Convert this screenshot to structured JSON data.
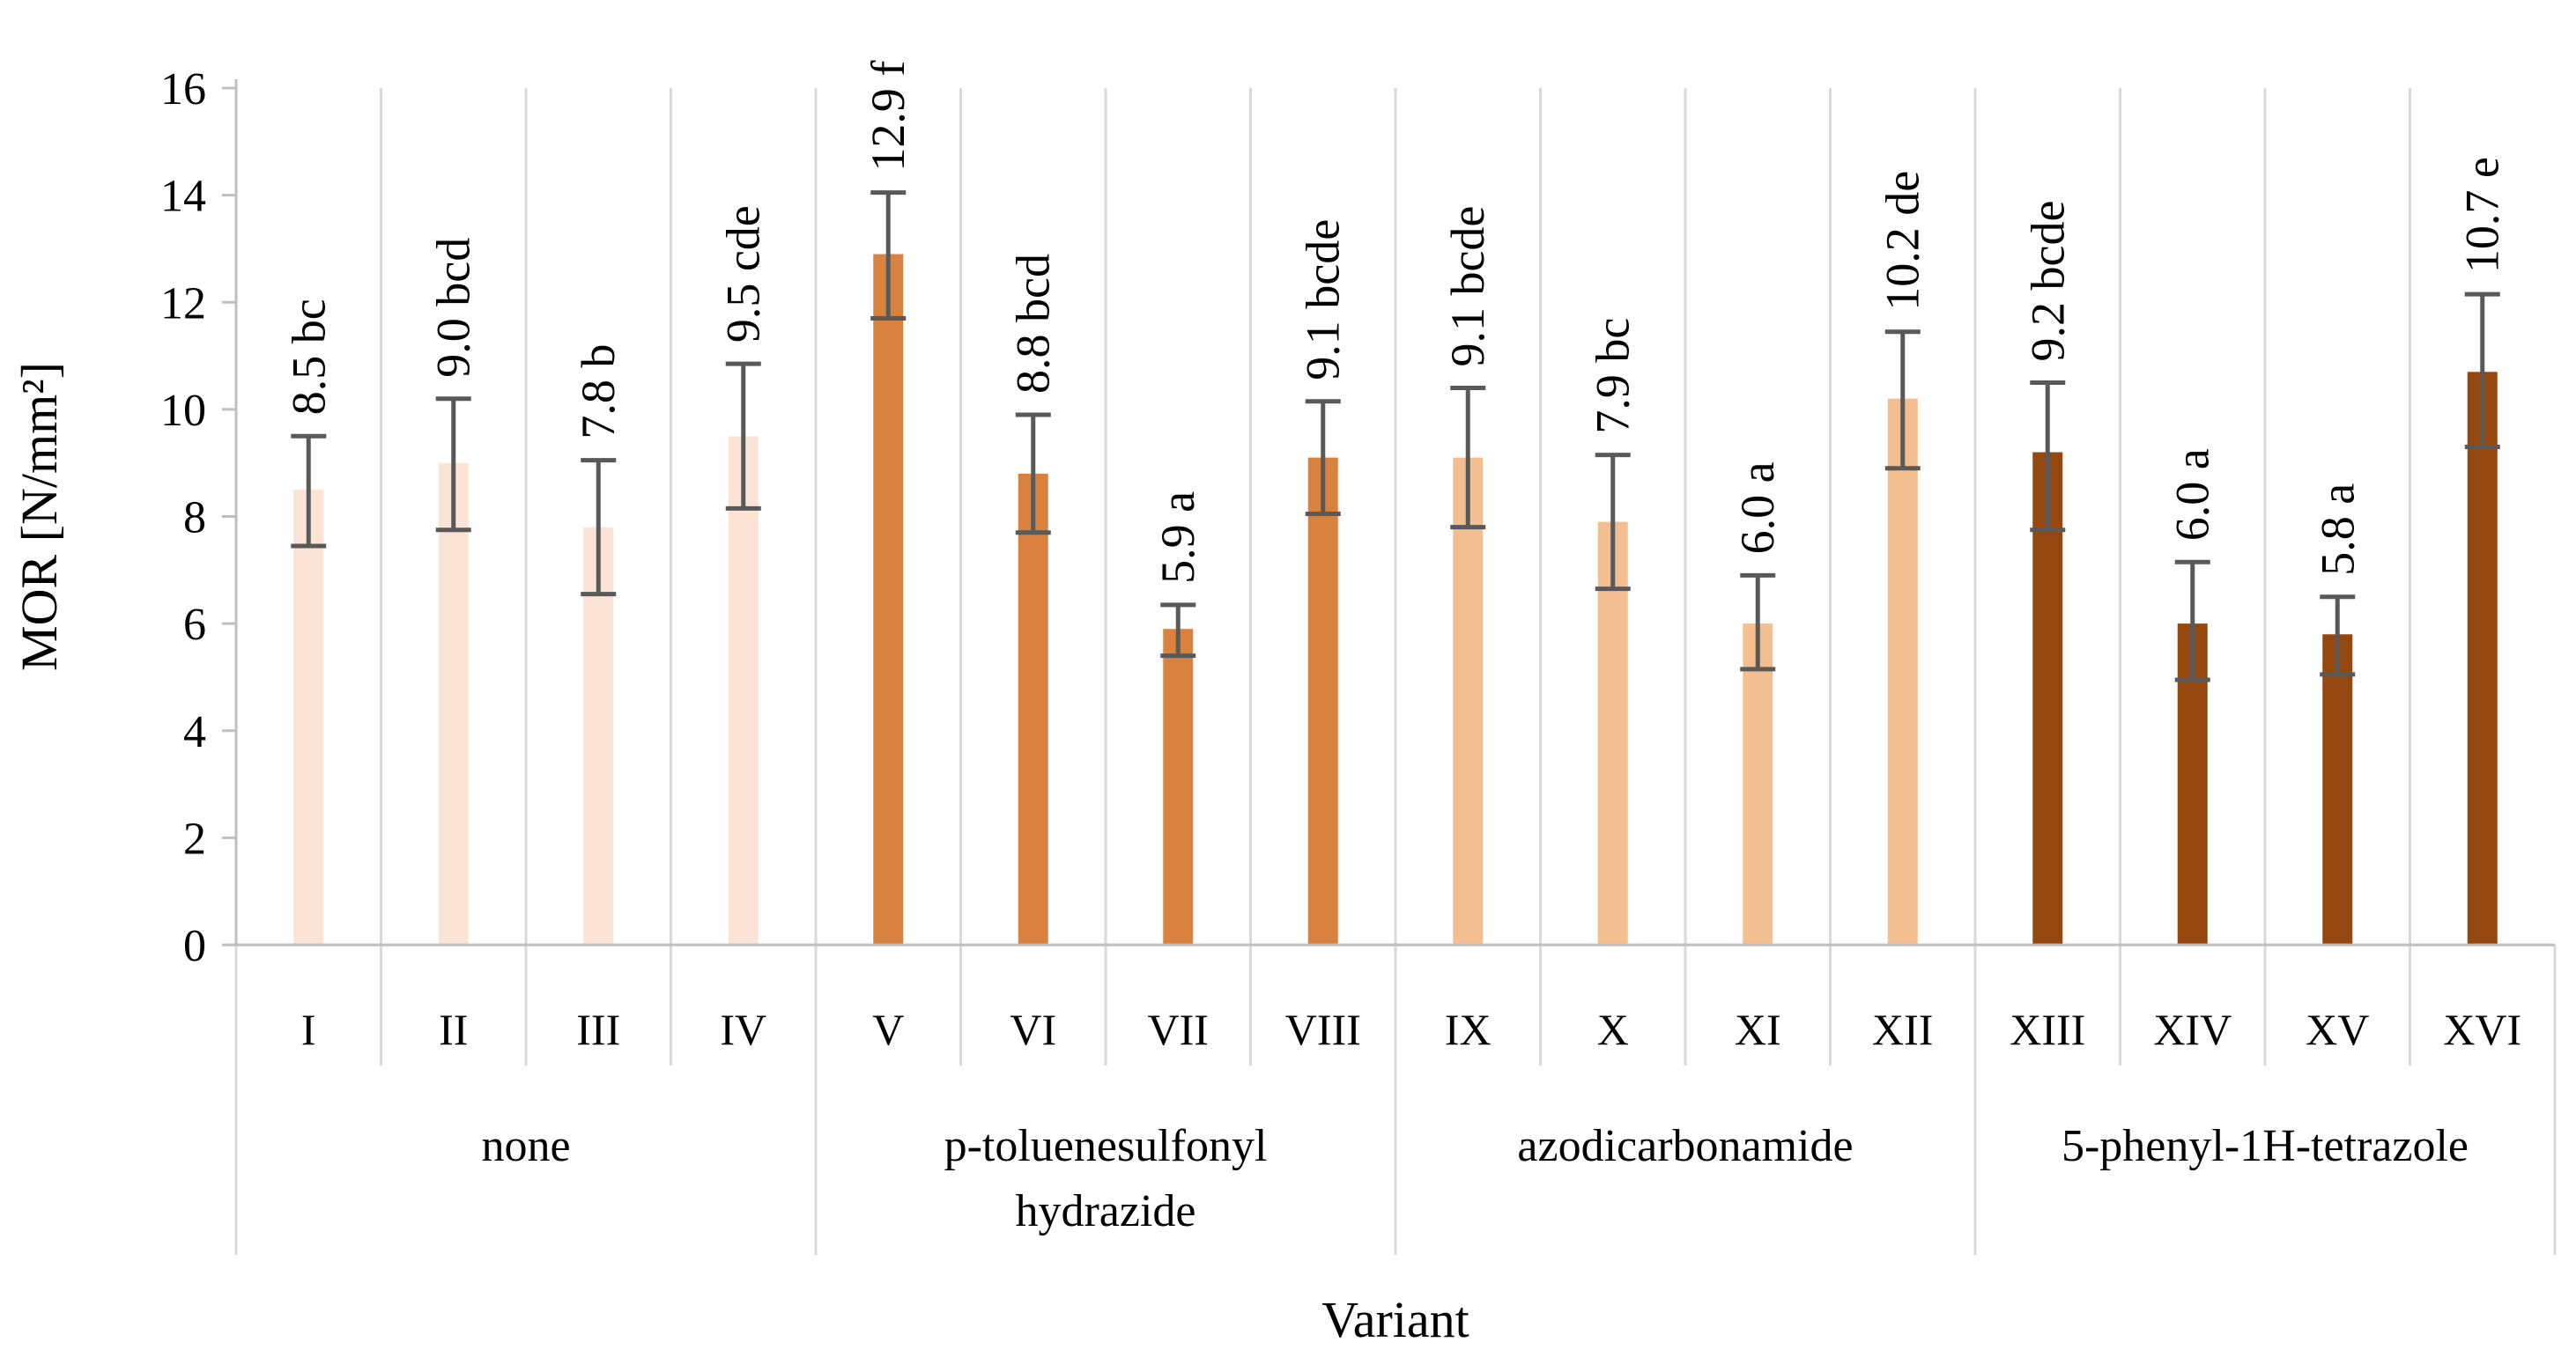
{
  "chart_data": {
    "type": "bar",
    "title": "",
    "xlabel": "Variant",
    "ylabel": "MOR [N/mm²]",
    "ylim": [
      0,
      16
    ],
    "yticks": [
      0,
      2,
      4,
      6,
      8,
      10,
      12,
      14,
      16
    ],
    "grid": "vertical category separators",
    "categories": [
      "I",
      "II",
      "III",
      "IV",
      "V",
      "VI",
      "VII",
      "VIII",
      "IX",
      "X",
      "XI",
      "XII",
      "XIII",
      "XIV",
      "XV",
      "XVI"
    ],
    "values": [
      8.5,
      9.0,
      7.8,
      9.5,
      12.9,
      8.8,
      5.9,
      9.1,
      9.1,
      7.9,
      6.0,
      10.2,
      9.2,
      6.0,
      5.8,
      10.7
    ],
    "error_low": [
      7.45,
      7.75,
      6.55,
      8.15,
      11.7,
      7.7,
      5.4,
      8.05,
      7.8,
      6.65,
      5.15,
      8.9,
      7.75,
      4.95,
      5.05,
      9.3
    ],
    "error_high": [
      9.5,
      10.2,
      9.05,
      10.85,
      14.05,
      9.9,
      6.35,
      10.15,
      10.4,
      9.15,
      6.9,
      11.45,
      10.5,
      7.15,
      6.5,
      12.15
    ],
    "data_labels": [
      "8.5 bc",
      "9.0  bcd",
      "7.8 b",
      "9.5 cde",
      "12.9 f",
      "8.8 bcd",
      "5.9 a",
      "9.1 bcde",
      "9.1 bcde",
      "7.9 bc",
      "6.0 a",
      "10.2 de",
      "9.2 bcde",
      "6.0 a",
      "5.8 a",
      "10.7 e"
    ],
    "groups": [
      {
        "name": "none",
        "lines": [
          "none"
        ],
        "start": 0,
        "count": 4,
        "color": "#fbe4d5"
      },
      {
        "name": "p-toluenesulfonyl hydrazide",
        "lines": [
          "p-toluenesulfonyl",
          "hydrazide"
        ],
        "start": 4,
        "count": 4,
        "color": "#d9823f"
      },
      {
        "name": "azodicarbonamide",
        "lines": [
          "azodicarbonamide"
        ],
        "start": 8,
        "count": 4,
        "color": "#f4bf90"
      },
      {
        "name": "5-phenyl-1H-tetrazole",
        "lines": [
          "5-phenyl-1H-tetrazole"
        ],
        "start": 12,
        "count": 4,
        "color": "#94470f"
      }
    ],
    "colors": {
      "error_bar": "#595959",
      "grid": "#d9d9d9",
      "axis": "#bfbfbf"
    }
  }
}
